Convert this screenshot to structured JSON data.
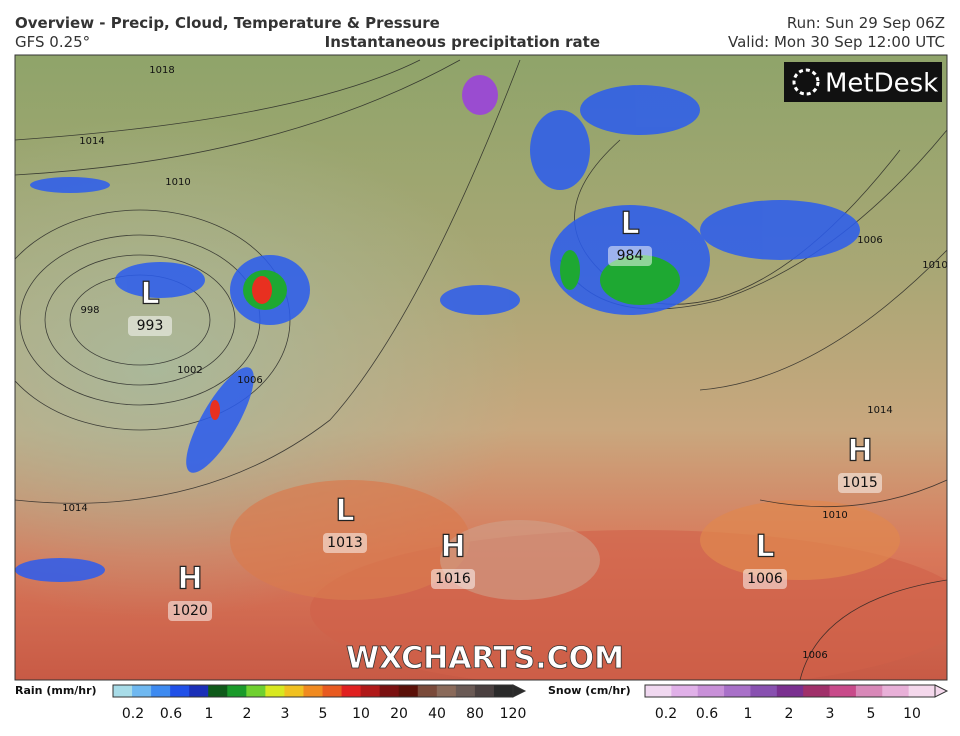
{
  "header": {
    "title": "Overview - Precip, Cloud, Temperature & Pressure",
    "model": "GFS 0.25°",
    "subtitle": "Instantaneous precipitation rate",
    "run": "Run: Sun 29 Sep 06Z",
    "valid": "Valid: Mon 30 Sep 12:00 UTC"
  },
  "map": {
    "brand": "MetDesk",
    "watermark": "WXCHARTS.COM",
    "systems": [
      {
        "symbol": "L",
        "pressure": "993"
      },
      {
        "symbol": "L",
        "pressure": "984"
      },
      {
        "symbol": "H",
        "pressure": "1015"
      },
      {
        "symbol": "L",
        "pressure": "1013"
      },
      {
        "symbol": "H",
        "pressure": "1016"
      },
      {
        "symbol": "L",
        "pressure": "1006"
      },
      {
        "symbol": "H",
        "pressure": "1020"
      }
    ],
    "isobar_labels": [
      "1018",
      "1014",
      "1010",
      "998",
      "1002",
      "1006",
      "1014",
      "1006",
      "1010",
      "1014",
      "1010",
      "1006"
    ]
  },
  "legend": {
    "rain_label": "Rain (mm/hr)",
    "rain_ticks": [
      "0.2",
      "0.6",
      "1",
      "2",
      "3",
      "5",
      "10",
      "20",
      "40",
      "80",
      "120"
    ],
    "snow_label": "Snow (cm/hr)",
    "snow_ticks": [
      "0.2",
      "0.6",
      "1",
      "2",
      "3",
      "5",
      "10"
    ]
  }
}
